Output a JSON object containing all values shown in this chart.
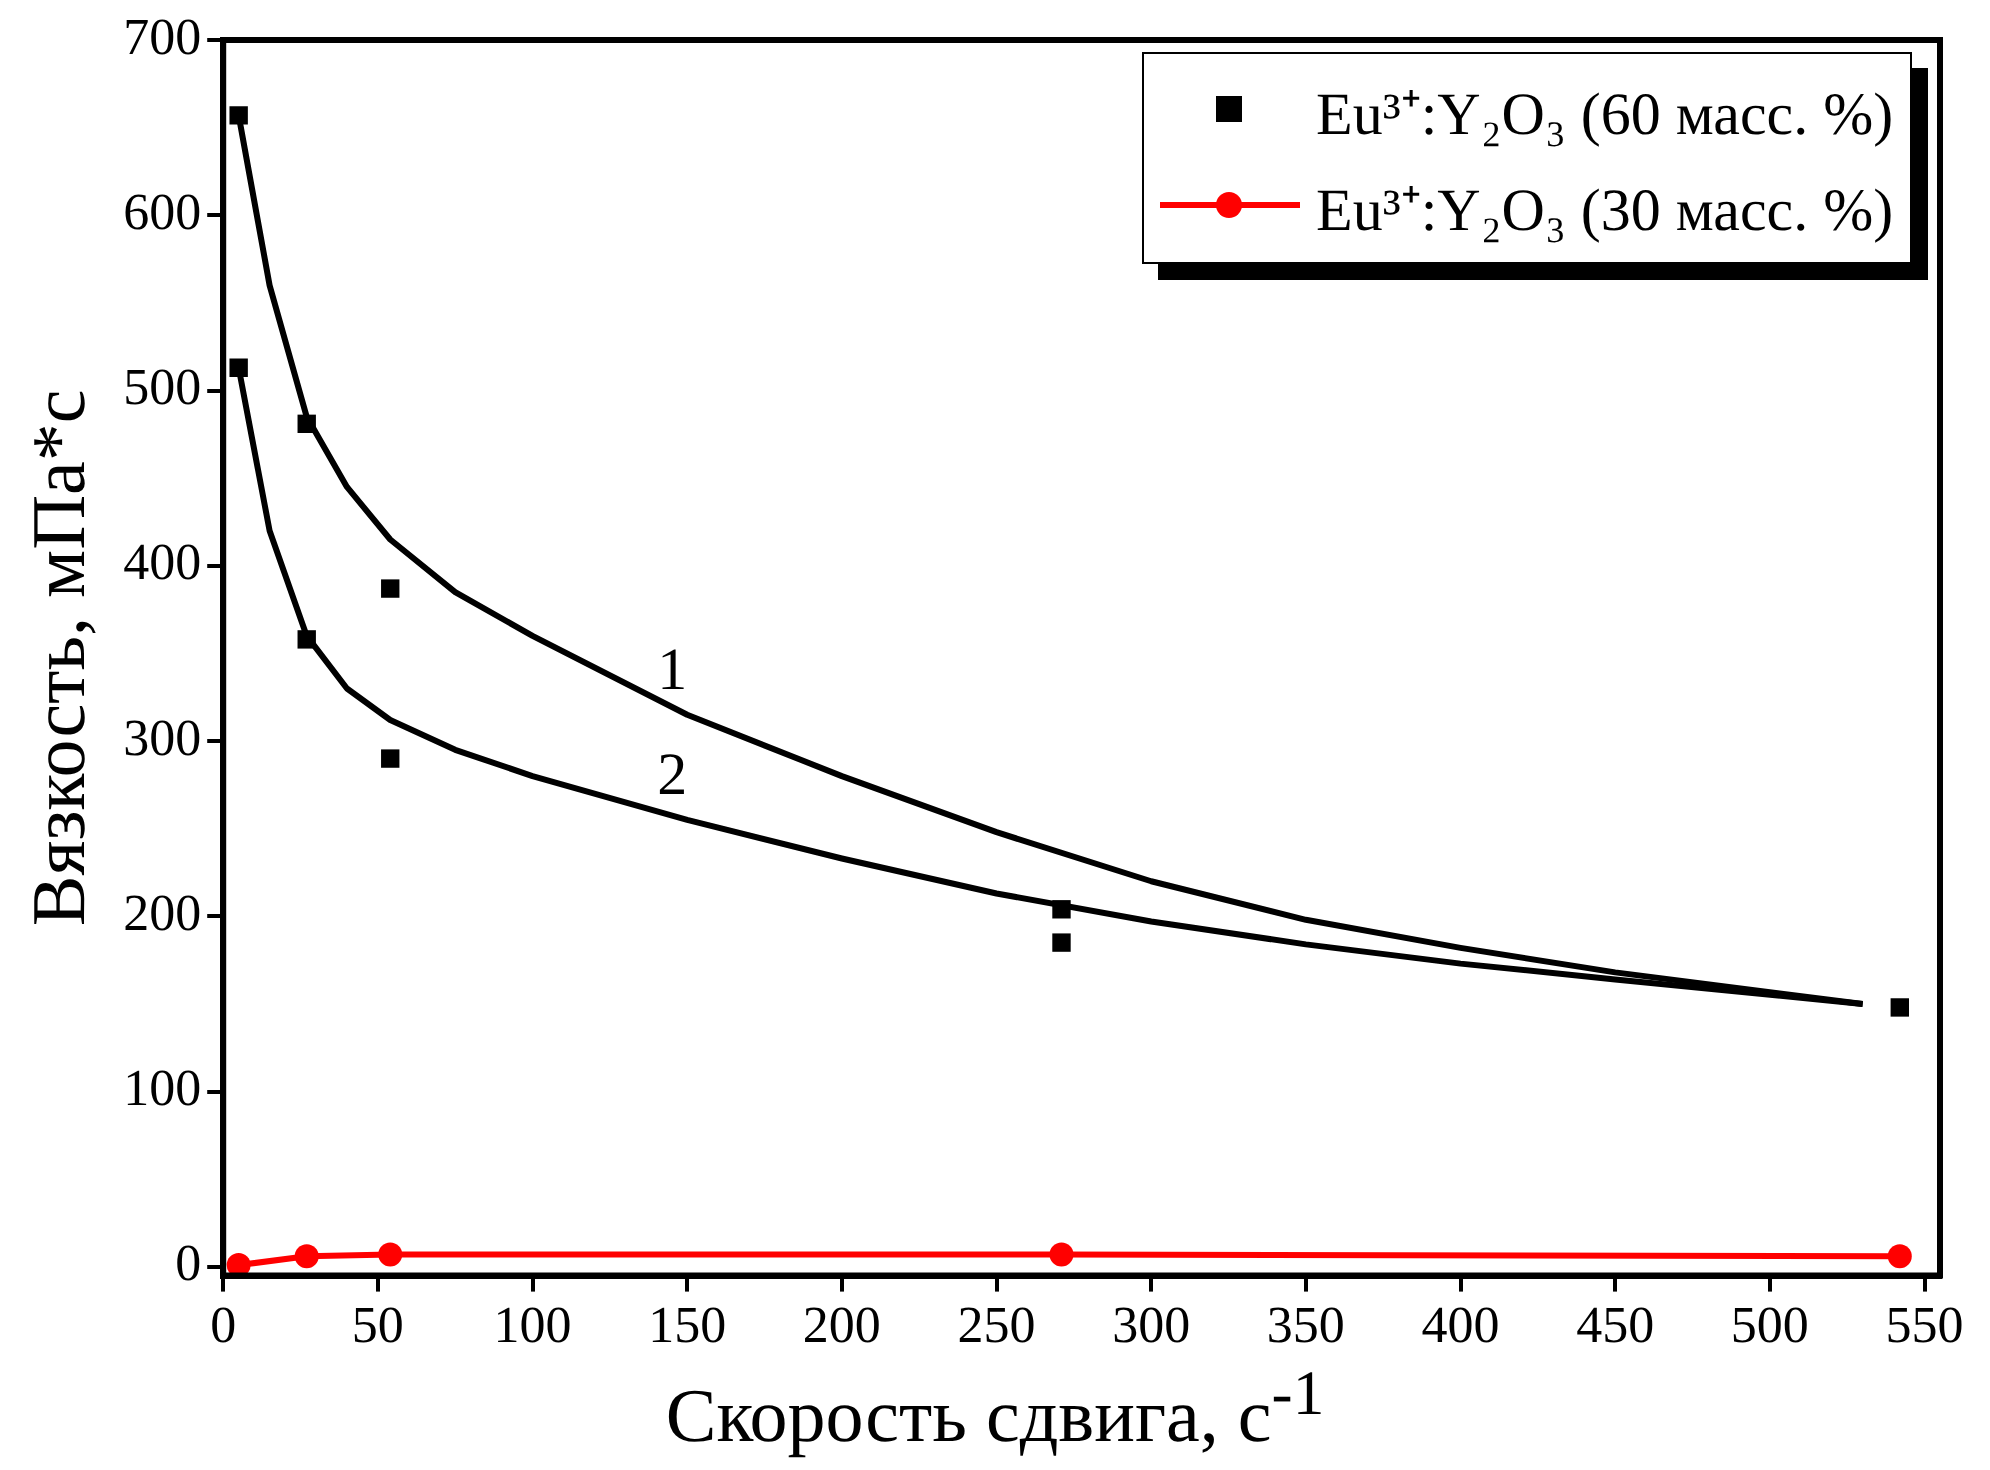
{
  "chart_data": {
    "type": "scatter",
    "xlabel": "Скорость сдвига, с$^{-1}$",
    "ylabel": "Вязкость, мПа*с",
    "xlim": [
      0,
      555
    ],
    "xticks": [
      0,
      50,
      100,
      150,
      200,
      250,
      300,
      350,
      400,
      450,
      500,
      550
    ],
    "ylim": [
      -5,
      700
    ],
    "yticks": [
      0,
      100,
      200,
      300,
      400,
      500,
      600,
      700
    ],
    "grid": false,
    "legend": "top right",
    "series": [
      {
        "name": "Eu³⁺:Y₂O₃ (60 масс. %)",
        "type": "scatter",
        "marker": "square",
        "color": "#000000",
        "x": [
          5,
          5,
          27,
          27,
          54,
          54,
          271,
          271,
          542
        ],
        "values": [
          657,
          513,
          481,
          358,
          387,
          290,
          204,
          185,
          148
        ]
      },
      {
        "name": "Eu³⁺:Y₂O₃ (30 масс. %)",
        "type": "line",
        "marker": "circle",
        "color": "#ff0000",
        "x": [
          5,
          27,
          54,
          271,
          542
        ],
        "values": [
          1,
          6,
          7,
          7,
          6
        ]
      },
      {
        "type": "line",
        "marker": "none",
        "color": "#000000",
        "x": [
          5,
          15,
          27,
          40,
          54,
          75,
          100,
          150,
          200,
          250,
          300,
          350,
          400,
          450,
          530
        ],
        "values": [
          657,
          560,
          485,
          445,
          415,
          385,
          360,
          315,
          280,
          248,
          220,
          198,
          182,
          168,
          150
        ]
      },
      {
        "type": "line",
        "marker": "none",
        "color": "#000000",
        "x": [
          5,
          15,
          27,
          40,
          54,
          75,
          100,
          150,
          200,
          250,
          300,
          350,
          400,
          450,
          530
        ],
        "values": [
          513,
          420,
          360,
          330,
          312,
          295,
          280,
          255,
          233,
          213,
          197,
          184,
          173,
          164,
          150
        ]
      }
    ],
    "annotations": [
      {
        "text": "1",
        "x": 150,
        "y": 315
      },
      {
        "text": "2",
        "x": 150,
        "y": 255
      }
    ]
  }
}
